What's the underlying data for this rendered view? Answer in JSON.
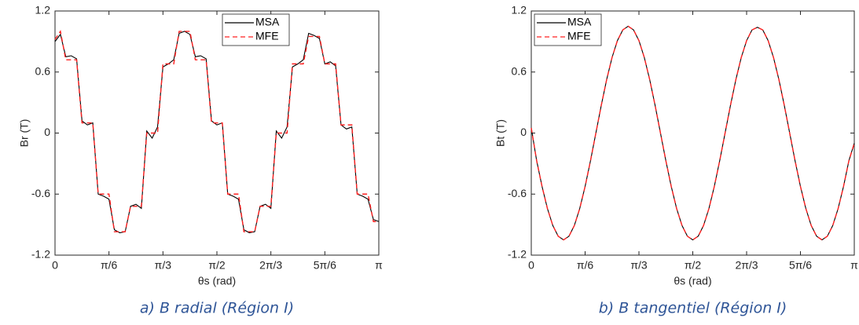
{
  "chart_data": [
    {
      "type": "line",
      "caption": "a) B radial (Région I)",
      "xlabel": "θs (rad)",
      "ylabel": "Br (T)",
      "legend": "top-right",
      "xlim": [
        0,
        3.1416
      ],
      "ylim": [
        -1.2,
        1.2
      ],
      "yticks": [
        -1.2,
        -0.6,
        0,
        0.6,
        1.2
      ],
      "xticks": [
        0,
        {
          "value": 0.5236,
          "label": "π/6"
        },
        {
          "value": 1.0472,
          "label": "π/3"
        },
        {
          "value": 1.5708,
          "label": "π/2"
        },
        {
          "value": 2.0944,
          "label": "2π/3"
        },
        {
          "value": 2.618,
          "label": "5π/6"
        },
        {
          "value": 3.1416,
          "label": "π"
        }
      ],
      "x": [
        0,
        0.0524,
        0.1047,
        0.1571,
        0.2094,
        0.2618,
        0.3142,
        0.3665,
        0.4189,
        0.4712,
        0.5236,
        0.576,
        0.6283,
        0.6807,
        0.733,
        0.7854,
        0.8378,
        0.8901,
        0.9425,
        0.9948,
        1.0472,
        1.0996,
        1.1519,
        1.2043,
        1.2566,
        1.309,
        1.3614,
        1.4137,
        1.4661,
        1.5184,
        1.5708,
        1.6232,
        1.6755,
        1.7279,
        1.7802,
        1.8326,
        1.885,
        1.9373,
        1.9897,
        2.042,
        2.0944,
        2.1468,
        2.1991,
        2.2515,
        2.3038,
        2.3562,
        2.4086,
        2.4609,
        2.5133,
        2.5656,
        2.618,
        2.6704,
        2.7227,
        2.7751,
        2.8274,
        2.8798,
        2.9322,
        2.9845,
        3.0369,
        3.0892,
        3.1416
      ],
      "series": [
        {
          "name": "MSA",
          "color": "#000000",
          "dash": false,
          "values": [
            0.9,
            0.97,
            0.75,
            0.76,
            0.73,
            0.12,
            0.08,
            0.1,
            -0.6,
            -0.62,
            -0.65,
            -0.95,
            -0.98,
            -0.97,
            -0.72,
            -0.7,
            -0.74,
            0.02,
            -0.05,
            0.06,
            0.65,
            0.68,
            0.72,
            0.98,
            1.0,
            0.97,
            0.75,
            0.76,
            0.73,
            0.12,
            0.08,
            0.1,
            -0.6,
            -0.62,
            -0.65,
            -0.95,
            -0.98,
            -0.97,
            -0.72,
            -0.7,
            -0.74,
            0.02,
            -0.05,
            0.06,
            0.65,
            0.68,
            0.72,
            0.98,
            0.96,
            0.93,
            0.68,
            0.7,
            0.66,
            0.08,
            0.04,
            0.06,
            -0.6,
            -0.62,
            -0.65,
            -0.85,
            -0.87
          ]
        },
        {
          "name": "MFE",
          "color": "#ff2020",
          "dash": true,
          "values": [
            0.92,
            1.0,
            0.72,
            0.72,
            0.72,
            0.1,
            0.1,
            0.1,
            -0.6,
            -0.6,
            -0.6,
            -0.97,
            -0.97,
            -0.97,
            -0.72,
            -0.72,
            -0.72,
            0,
            0,
            0,
            0.68,
            0.68,
            0.68,
            1.0,
            1.0,
            1.0,
            0.72,
            0.72,
            0.72,
            0.1,
            0.1,
            0.1,
            -0.6,
            -0.6,
            -0.6,
            -0.97,
            -0.97,
            -0.97,
            -0.72,
            -0.72,
            -0.72,
            0,
            0,
            0,
            0.68,
            0.68,
            0.68,
            0.95,
            0.95,
            0.95,
            0.68,
            0.68,
            0.68,
            0.08,
            0.08,
            0.08,
            -0.6,
            -0.6,
            -0.6,
            -0.87,
            -0.87
          ]
        }
      ]
    },
    {
      "type": "line",
      "caption": "b) B tangentiel (Région I)",
      "xlabel": "θs (rad)",
      "ylabel": "Bt (T)",
      "legend": "top-left",
      "xlim": [
        0,
        3.1416
      ],
      "ylim": [
        -1.2,
        1.2
      ],
      "yticks": [
        -1.2,
        -0.6,
        0,
        0.6,
        1.2
      ],
      "xticks": [
        0,
        {
          "value": 0.5236,
          "label": "π/6"
        },
        {
          "value": 1.0472,
          "label": "π/3"
        },
        {
          "value": 1.5708,
          "label": "π/2"
        },
        {
          "value": 2.0944,
          "label": "2π/3"
        },
        {
          "value": 2.618,
          "label": "5π/6"
        },
        {
          "value": 3.1416,
          "label": "π"
        }
      ],
      "x": [
        0,
        0.0524,
        0.1047,
        0.1571,
        0.2094,
        0.2618,
        0.3142,
        0.3665,
        0.4189,
        0.4712,
        0.5236,
        0.576,
        0.6283,
        0.6807,
        0.733,
        0.7854,
        0.8378,
        0.8901,
        0.9425,
        0.9948,
        1.0472,
        1.0996,
        1.1519,
        1.2043,
        1.2566,
        1.309,
        1.3614,
        1.4137,
        1.4661,
        1.5184,
        1.5708,
        1.6232,
        1.6755,
        1.7279,
        1.7802,
        1.8326,
        1.885,
        1.9373,
        1.9897,
        2.042,
        2.0944,
        2.1468,
        2.1991,
        2.2515,
        2.3038,
        2.3562,
        2.4086,
        2.4609,
        2.5133,
        2.5656,
        2.618,
        2.6704,
        2.7227,
        2.7751,
        2.8274,
        2.8798,
        2.9322,
        2.9845,
        3.0369,
        3.0892,
        3.1416
      ],
      "series": [
        {
          "name": "MSA",
          "color": "#000000",
          "dash": false,
          "values": [
            0.05,
            -0.272,
            -0.525,
            -0.742,
            -0.909,
            -1.014,
            -1.05,
            -1.014,
            -0.909,
            -0.742,
            -0.525,
            -0.272,
            0,
            0.272,
            0.525,
            0.742,
            0.909,
            1.014,
            1.05,
            1.014,
            0.909,
            0.742,
            0.525,
            0.272,
            0,
            -0.272,
            -0.525,
            -0.742,
            -0.909,
            -1.014,
            -1.05,
            -1.014,
            -0.909,
            -0.742,
            -0.525,
            -0.272,
            0,
            0.272,
            0.525,
            0.742,
            0.909,
            1.014,
            1.04,
            1.014,
            0.909,
            0.742,
            0.525,
            0.272,
            0,
            -0.272,
            -0.525,
            -0.742,
            -0.909,
            -1.014,
            -1.05,
            -1.014,
            -0.909,
            -0.742,
            -0.525,
            -0.272,
            -0.1
          ]
        },
        {
          "name": "MFE",
          "color": "#ff2020",
          "dash": true,
          "values": [
            0.05,
            -0.272,
            -0.525,
            -0.742,
            -0.909,
            -1.014,
            -1.05,
            -1.014,
            -0.909,
            -0.742,
            -0.525,
            -0.272,
            0,
            0.272,
            0.525,
            0.742,
            0.909,
            1.014,
            1.05,
            1.014,
            0.909,
            0.742,
            0.525,
            0.272,
            0,
            -0.272,
            -0.525,
            -0.742,
            -0.909,
            -1.014,
            -1.05,
            -1.014,
            -0.909,
            -0.742,
            -0.525,
            -0.272,
            0,
            0.272,
            0.525,
            0.742,
            0.909,
            1.014,
            1.04,
            1.014,
            0.909,
            0.742,
            0.525,
            0.272,
            0,
            -0.272,
            -0.525,
            -0.742,
            -0.909,
            -1.014,
            -1.05,
            -1.014,
            -0.909,
            -0.742,
            -0.525,
            -0.272,
            -0.1
          ]
        }
      ]
    }
  ]
}
